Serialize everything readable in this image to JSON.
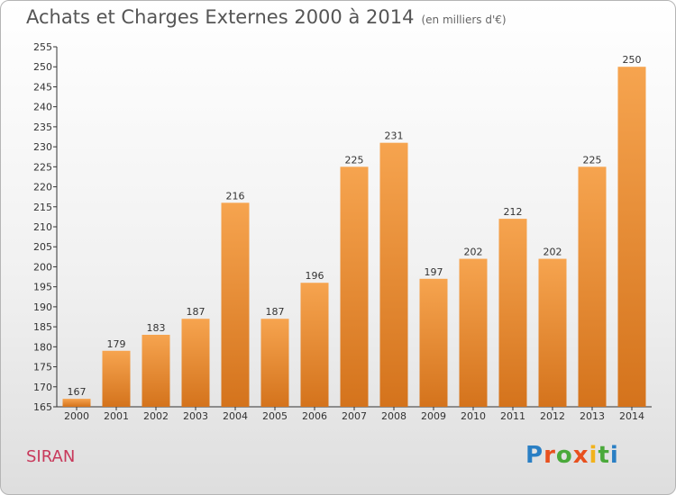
{
  "header": {
    "title": "Achats et Charges Externes 2000 à 2014",
    "unit": "(en milliers d'€)"
  },
  "footer": {
    "commune": "SIRAN",
    "logo": "Proxiti"
  },
  "colors": {
    "bar_top": "#f6a44f",
    "bar_bottom": "#d4731c",
    "commune": "#c8395b"
  },
  "chart_data": {
    "type": "bar",
    "title": "Achats et Charges Externes 2000 à 2014",
    "categories": [
      "2000",
      "2001",
      "2002",
      "2003",
      "2004",
      "2005",
      "2006",
      "2007",
      "2008",
      "2009",
      "2010",
      "2011",
      "2012",
      "2013",
      "2014"
    ],
    "values": [
      167,
      179,
      183,
      187,
      216,
      187,
      196,
      225,
      231,
      197,
      202,
      212,
      202,
      225,
      250
    ],
    "ylim": [
      165,
      255
    ],
    "yticks": [
      165,
      170,
      175,
      180,
      185,
      190,
      195,
      200,
      205,
      210,
      215,
      220,
      225,
      230,
      235,
      240,
      245,
      250,
      255
    ],
    "grid": false,
    "legend": "none"
  }
}
